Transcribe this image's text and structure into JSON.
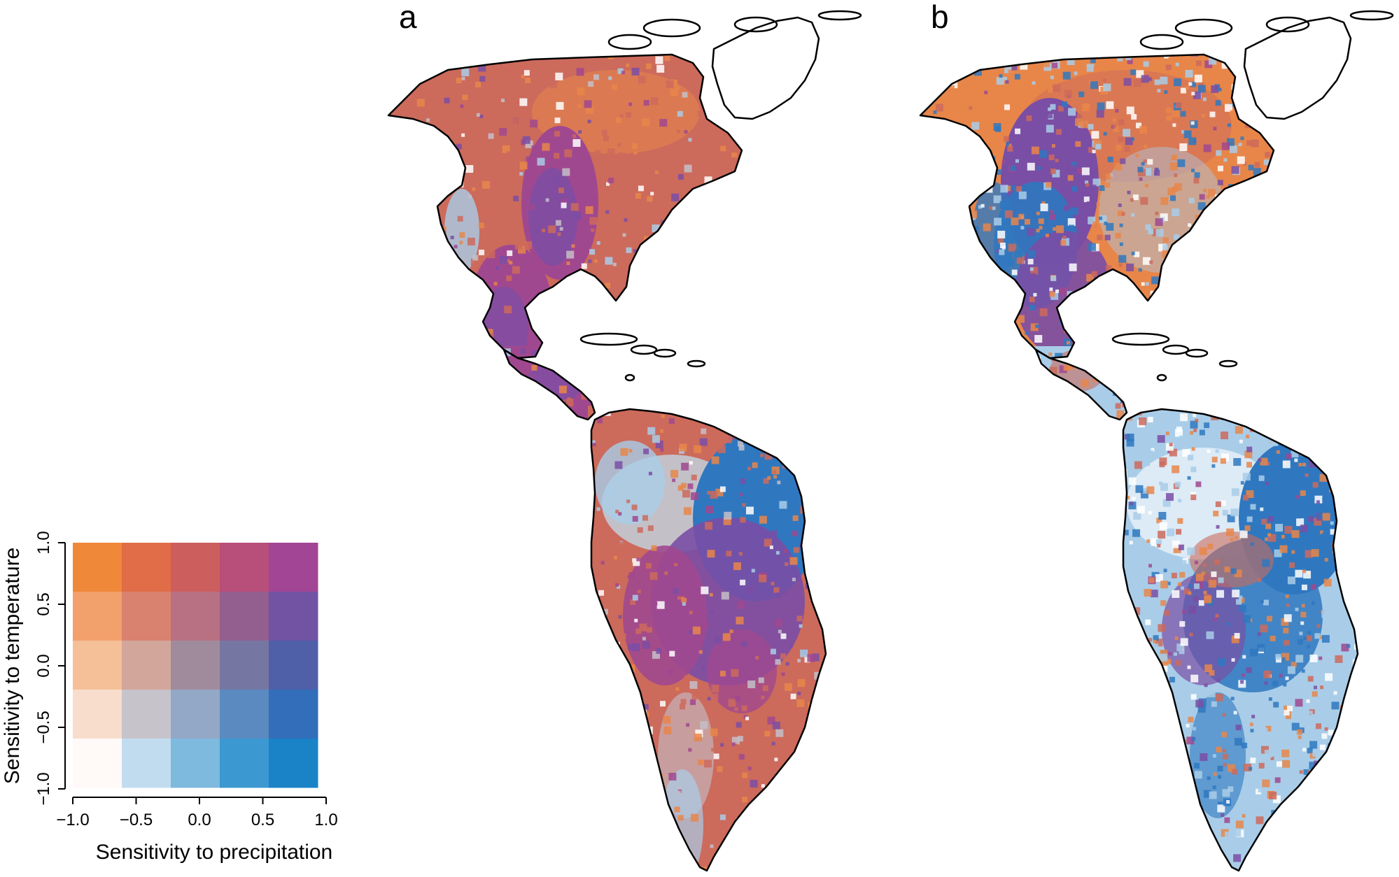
{
  "panels": [
    {
      "label": "a"
    },
    {
      "label": "b"
    }
  ],
  "legend": {
    "xlabel": "Sensitivity to precipitation",
    "ylabel": "Sensitivity to temperature",
    "x_ticks": [
      "−1.0",
      "−0.5",
      "0.0",
      "0.5",
      "1.0"
    ],
    "y_ticks": [
      "−1.0",
      "−0.5",
      "0.0",
      "0.5",
      "1.0"
    ],
    "xlim": [
      -1.0,
      1.0
    ],
    "ylim": [
      -1.0,
      1.0
    ],
    "grid_colors_top_to_bottom": [
      [
        "#f0883a",
        "#e06d47",
        "#cc5e5e",
        "#b84e7a",
        "#a24595"
      ],
      [
        "#f2a06c",
        "#d9826f",
        "#b87182",
        "#935f8e",
        "#7152a3"
      ],
      [
        "#f5bf98",
        "#d2a69a",
        "#a08b9c",
        "#7676a3",
        "#4f60a8"
      ],
      [
        "#f8ddcc",
        "#c6c3cb",
        "#93a8c6",
        "#5a8ac0",
        "#336eba"
      ],
      [
        "#fff9f8",
        "#c2dcef",
        "#7eb9de",
        "#3c98d1",
        "#1a82c6"
      ]
    ]
  },
  "map_colors": {
    "orange": "#e8864a",
    "salmon": "#cc6a5c",
    "magenta": "#a0488f",
    "purple": "#7a4ea5",
    "blue": "#2f78c0",
    "lightblue": "#a9cde8",
    "grey": "#c4c0c8",
    "coastline": "#000000"
  }
}
